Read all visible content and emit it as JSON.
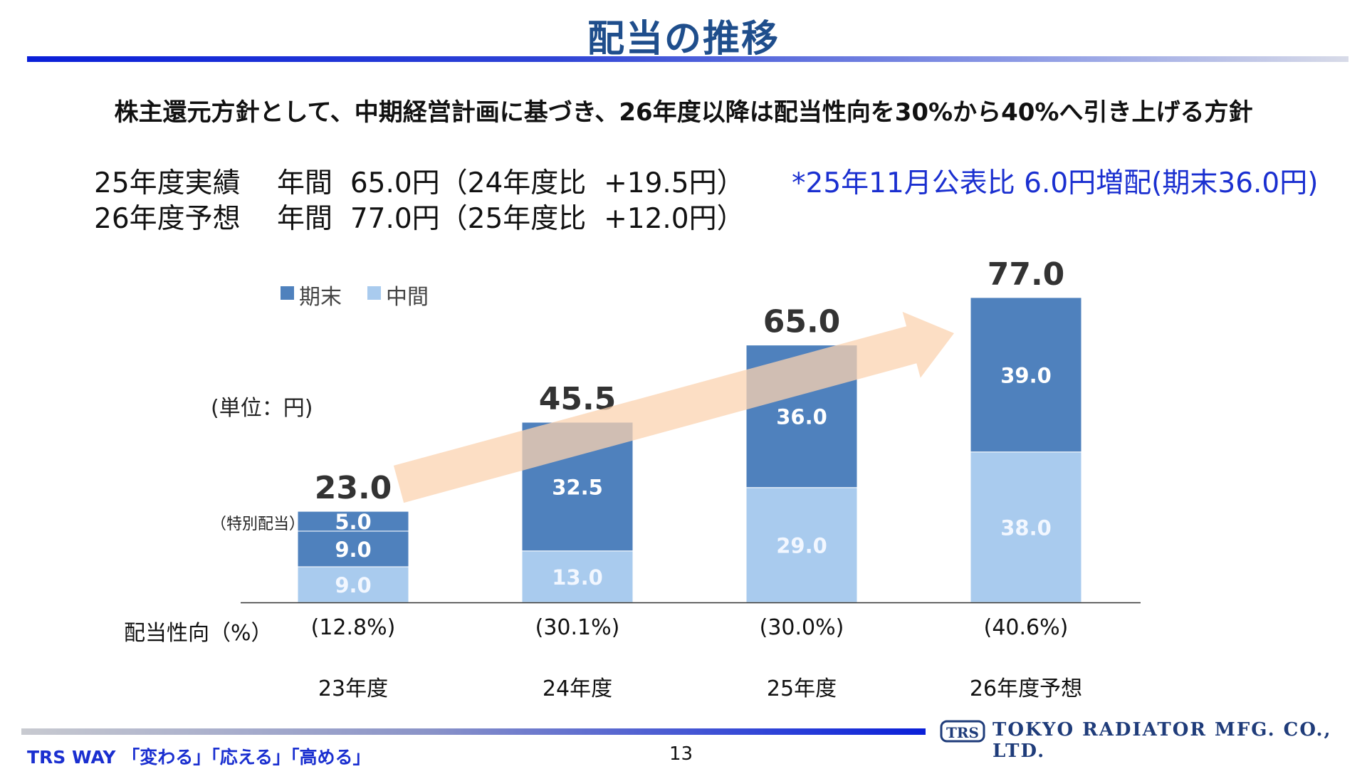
{
  "slide": {
    "title": "配当の推移",
    "headline": "株主還元方針として、中期経営計画に基づき、26年度以降は配当性向を30%から40%へ引き上げる方針",
    "summary_line1": "25年度実績　 年間  65.0円（24年度比  +19.5円）",
    "summary_line2": "26年度予想　 年間  77.0円（25年度比  +12.0円）",
    "note": "*25年11月公表比 6.0円増配(期末36.0円)",
    "unit_label": "(単位：円)",
    "special_dividend_label": "（特別配当）",
    "payout_label": "配当性向（%）",
    "footer_tagline": "TRS WAY 「変わる」「応える」「高める」",
    "page_number": "13",
    "company_name": "TOKYO RADIATOR MFG. CO., LTD.",
    "logo_text": "TRS"
  },
  "colors": {
    "title": "#1f4e8c",
    "accent_blue": "#1a2fd0",
    "kimatsu": "#4f81bd",
    "chukan": "#a9cbee",
    "arrow": "#fbd3b0"
  },
  "chart_data": {
    "type": "bar",
    "stacked": true,
    "categories": [
      "23年度",
      "24年度",
      "25年度",
      "26年度予想"
    ],
    "series": [
      {
        "name": "中間",
        "values": [
          9.0,
          13.0,
          29.0,
          38.0
        ]
      },
      {
        "name": "期末",
        "values": [
          9.0,
          32.5,
          36.0,
          39.0
        ]
      },
      {
        "name": "",
        "values": [
          5.0,
          0,
          0,
          0
        ]
      }
    ],
    "segment_labels": [
      [
        "9.0",
        "9.0",
        "5.0"
      ],
      [
        "13.0",
        "32.5"
      ],
      [
        "29.0",
        "36.0"
      ],
      [
        "38.0",
        "39.0"
      ]
    ],
    "totals": [
      "23.0",
      "45.5",
      "65.0",
      "77.0"
    ],
    "payout_ratios": [
      "(12.8%)",
      "(30.1%)",
      "(30.0%)",
      "(40.6%)"
    ],
    "legend": [
      {
        "name": "期末",
        "color": "#4f81bd"
      },
      {
        "name": "中間",
        "color": "#a9cbee"
      }
    ],
    "legend_position": "top-left",
    "ylim": [
      0,
      85
    ],
    "grid": false,
    "trend_arrow": true
  }
}
